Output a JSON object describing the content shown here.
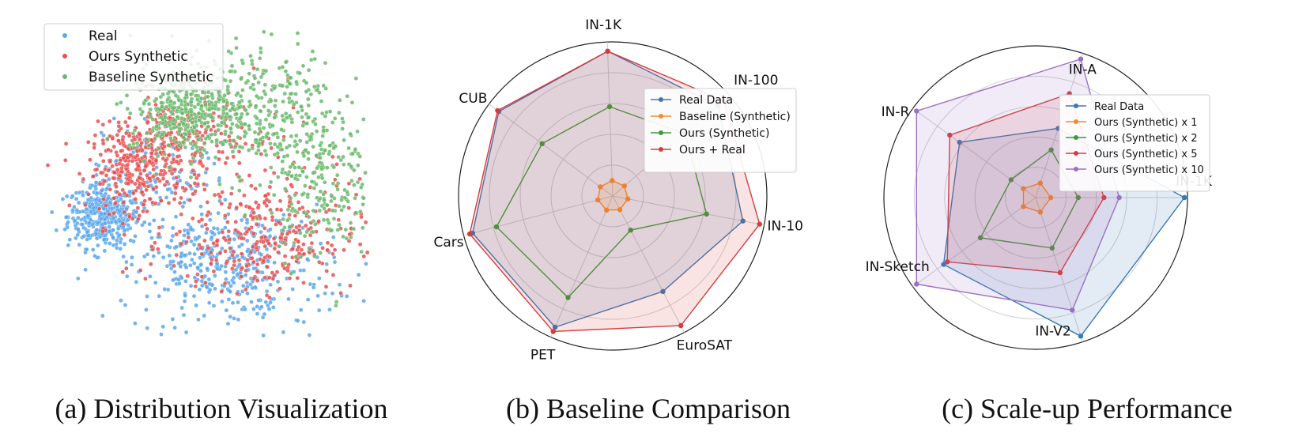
{
  "chart_data": [
    {
      "type": "scatter",
      "legend_position": "top-left",
      "series": [
        {
          "name": "Real",
          "color": "#5aa7ec",
          "clusters": [
            {
              "x": 0.6,
              "y": -0.5,
              "sx": 0.35,
              "sy": 0.3,
              "n": 420
            },
            {
              "x": 2.6,
              "y": -1.3,
              "sx": 0.7,
              "sy": 0.35,
              "n": 180
            },
            {
              "x": 3.3,
              "y": -1.8,
              "sx": 1.1,
              "sy": 0.5,
              "n": 170
            },
            {
              "x": 1.8,
              "y": 0.2,
              "sx": 0.6,
              "sy": 0.6,
              "n": 120
            },
            {
              "x": 3.9,
              "y": -0.9,
              "sx": 0.5,
              "sy": 0.3,
              "n": 60
            }
          ]
        },
        {
          "name": "Ours Synthetic",
          "color": "#e8504f",
          "clusters": [
            {
              "x": 1.2,
              "y": 0.4,
              "sx": 0.45,
              "sy": 0.4,
              "n": 260
            },
            {
              "x": 2.0,
              "y": 1.0,
              "sx": 0.5,
              "sy": 0.4,
              "n": 160
            },
            {
              "x": 3.7,
              "y": -1.0,
              "sx": 0.9,
              "sy": 0.45,
              "n": 260
            },
            {
              "x": 3.0,
              "y": 0.4,
              "sx": 1.2,
              "sy": 0.9,
              "n": 160
            }
          ]
        },
        {
          "name": "Baseline Synthetic",
          "color": "#6bba6c",
          "clusters": [
            {
              "x": 2.2,
              "y": 1.5,
              "sx": 0.55,
              "sy": 0.4,
              "n": 360
            },
            {
              "x": 3.5,
              "y": 1.6,
              "sx": 0.8,
              "sy": 0.7,
              "n": 300
            },
            {
              "x": 4.8,
              "y": 0.3,
              "sx": 0.5,
              "sy": 0.8,
              "n": 240
            }
          ]
        }
      ]
    },
    {
      "type": "radar",
      "axes": [
        "IN-1K",
        "IN-100",
        "IN-10",
        "EuroSAT",
        "PET",
        "Cars",
        "CUB"
      ],
      "rmax": 1.0,
      "legend_position": "top-right",
      "series": [
        {
          "name": "Real Data",
          "color": "#3b78b3",
          "fill": true,
          "values": [
            0.94,
            0.9,
            0.86,
            0.7,
            0.93,
            0.94,
            0.92
          ]
        },
        {
          "name": "Baseline (Synthetic)",
          "color": "#f28e2b",
          "fill": true,
          "values": [
            0.1,
            0.1,
            0.1,
            0.1,
            0.1,
            0.1,
            0.1
          ]
        },
        {
          "name": "Ours (Synthetic)",
          "color": "#3e9a3e",
          "fill": false,
          "values": [
            0.58,
            0.62,
            0.62,
            0.25,
            0.72,
            0.78,
            0.57
          ]
        },
        {
          "name": "Ours + Real",
          "color": "#d63c3c",
          "fill": true,
          "values": [
            0.94,
            0.95,
            0.97,
            0.95,
            0.96,
            0.96,
            0.93
          ]
        }
      ]
    },
    {
      "type": "radar",
      "axes": [
        "IN-1K",
        "IN-V2",
        "IN-Sketch",
        "IN-R",
        "IN-A"
      ],
      "rmax": 1.0,
      "legend_position": "top-right",
      "series": [
        {
          "name": "Real Data",
          "color": "#3b78b3",
          "fill": true,
          "values": [
            0.98,
            0.96,
            0.75,
            0.62,
            0.48
          ]
        },
        {
          "name": "Ours (Synthetic) x 1",
          "color": "#f28e2b",
          "fill": true,
          "values": [
            0.1,
            0.1,
            0.1,
            0.1,
            0.1
          ]
        },
        {
          "name": "Ours (Synthetic) x 2",
          "color": "#3e9a3e",
          "fill": false,
          "values": [
            0.28,
            0.35,
            0.45,
            0.2,
            0.33
          ]
        },
        {
          "name": "Ours (Synthetic) x 5",
          "color": "#d63c3c",
          "fill": true,
          "values": [
            0.45,
            0.52,
            0.72,
            0.7,
            0.72
          ]
        },
        {
          "name": "Ours (Synthetic) x 10",
          "color": "#9b6fc4",
          "fill": true,
          "values": [
            0.55,
            0.78,
            0.97,
            0.97,
            0.96
          ]
        }
      ]
    }
  ],
  "captions": {
    "a": "(a) Distribution Visualization",
    "b": "(b) Baseline Comparison",
    "c": "(c) Scale-up Performance"
  }
}
